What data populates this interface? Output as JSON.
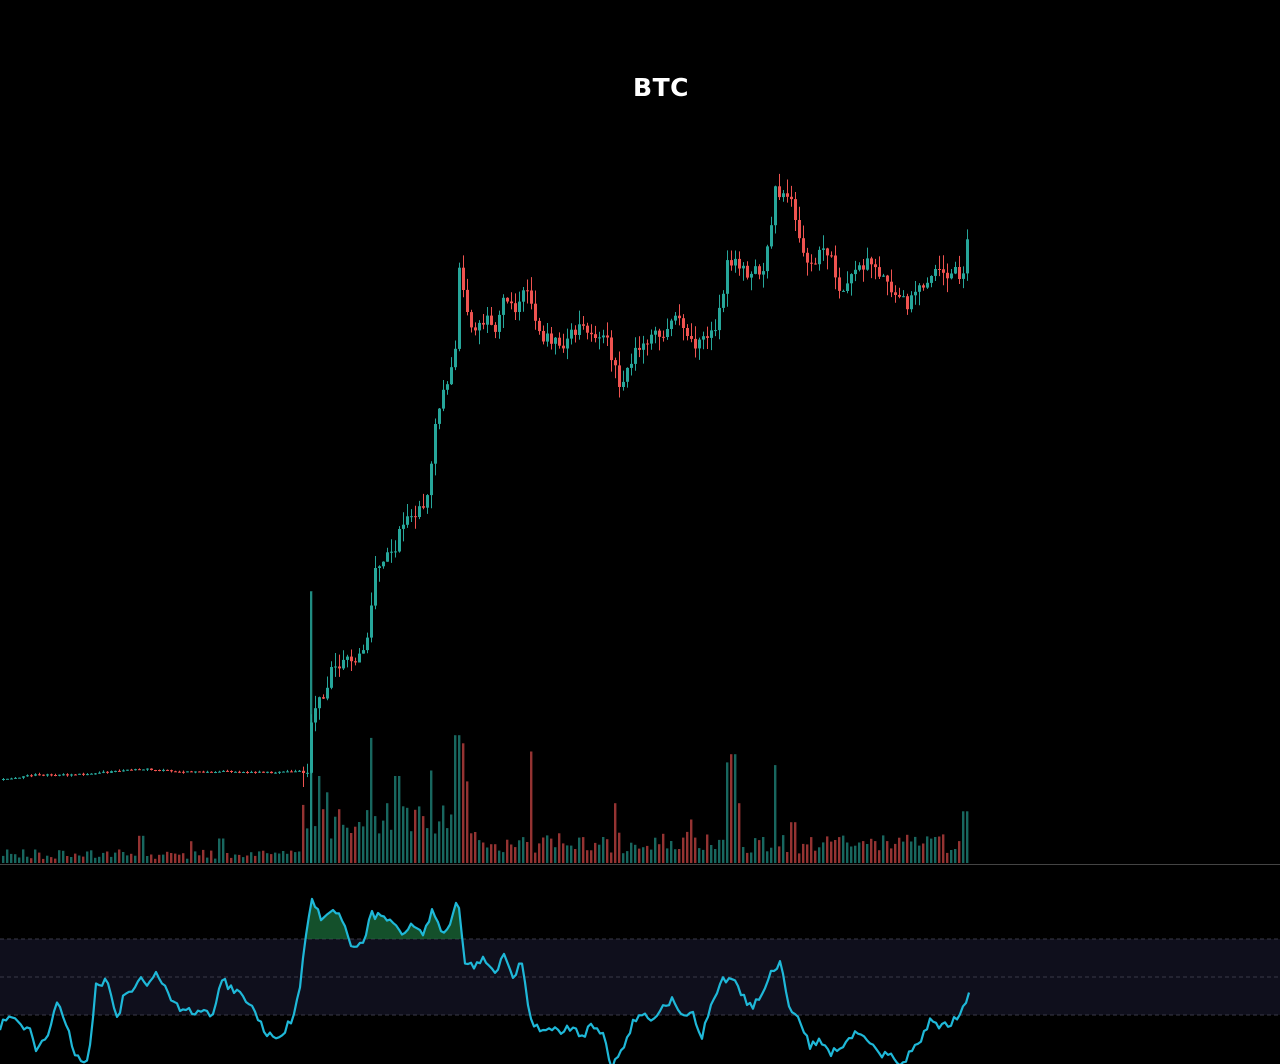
{
  "chart_data": {
    "type": "candlestick",
    "title": "BTC",
    "xlabel": "",
    "ylabel": "",
    "grid": false,
    "legend": "none",
    "price_range": [
      0,
      100
    ],
    "volume_range": [
      0,
      100
    ],
    "rsi_range": [
      0,
      100
    ],
    "rsi_bands": [
      70,
      50,
      30
    ],
    "colors": {
      "background": "#000000",
      "up": "#26a69a",
      "down": "#ef5350",
      "rsi_line": "#1fb8d8",
      "rsi_band_fill": "#0f0f1c",
      "rsi_overbought_fill": "#1b6b3a",
      "band_line": "#3a3a48",
      "separator": "#444444"
    },
    "price_path": [
      [
        0,
        0.0
      ],
      [
        32,
        0.8
      ],
      [
        60,
        0.8
      ],
      [
        90,
        1.0
      ],
      [
        140,
        1.8
      ],
      [
        180,
        1.3
      ],
      [
        220,
        1.4
      ],
      [
        270,
        1.2
      ],
      [
        300,
        1.5
      ],
      [
        306,
        1.8
      ],
      [
        312,
        12.0
      ],
      [
        318,
        12.5
      ],
      [
        325,
        13.0
      ],
      [
        330,
        17.0
      ],
      [
        340,
        19.0
      ],
      [
        350,
        19.5
      ],
      [
        360,
        20.0
      ],
      [
        366,
        22.0
      ],
      [
        372,
        32.0
      ],
      [
        382,
        35.0
      ],
      [
        392,
        36.0
      ],
      [
        398,
        40.0
      ],
      [
        405,
        42.0
      ],
      [
        412,
        41.5
      ],
      [
        420,
        43.0
      ],
      [
        428,
        47.0
      ],
      [
        432,
        55.0
      ],
      [
        440,
        60.0
      ],
      [
        448,
        63.5
      ],
      [
        455,
        68.0
      ],
      [
        458,
        80.5
      ],
      [
        462,
        77.0
      ],
      [
        466,
        75.0
      ],
      [
        470,
        71.0
      ],
      [
        478,
        71.5
      ],
      [
        486,
        73.0
      ],
      [
        494,
        71.0
      ],
      [
        502,
        77.0
      ],
      [
        512,
        76.0
      ],
      [
        516,
        74.0
      ],
      [
        522,
        78.0
      ],
      [
        528,
        77.0
      ],
      [
        532,
        73.0
      ],
      [
        542,
        70.5
      ],
      [
        552,
        70.0
      ],
      [
        562,
        69.5
      ],
      [
        572,
        71.0
      ],
      [
        580,
        72.0
      ],
      [
        588,
        70.0
      ],
      [
        596,
        71.5
      ],
      [
        604,
        70.0
      ],
      [
        612,
        67.0
      ],
      [
        618,
        62.0
      ],
      [
        626,
        64.5
      ],
      [
        634,
        68.0
      ],
      [
        644,
        70.5
      ],
      [
        652,
        70.0
      ],
      [
        660,
        71.0
      ],
      [
        670,
        72.0
      ],
      [
        676,
        73.5
      ],
      [
        684,
        71.0
      ],
      [
        690,
        70.0
      ],
      [
        698,
        69.0
      ],
      [
        706,
        70.5
      ],
      [
        712,
        71.0
      ],
      [
        720,
        76.0
      ],
      [
        726,
        82.5
      ],
      [
        734,
        83.0
      ],
      [
        740,
        81.0
      ],
      [
        746,
        80.0
      ],
      [
        754,
        81.0
      ],
      [
        762,
        81.0
      ],
      [
        768,
        86.5
      ],
      [
        774,
        94.0
      ],
      [
        780,
        92.0
      ],
      [
        786,
        93.0
      ],
      [
        790,
        92.5
      ],
      [
        796,
        88.0
      ],
      [
        800,
        84.0
      ],
      [
        806,
        82.0
      ],
      [
        812,
        81.0
      ],
      [
        818,
        84.0
      ],
      [
        824,
        84.5
      ],
      [
        830,
        83.0
      ],
      [
        836,
        79.0
      ],
      [
        842,
        78.0
      ],
      [
        850,
        80.0
      ],
      [
        858,
        81.5
      ],
      [
        866,
        82.0
      ],
      [
        872,
        81.0
      ],
      [
        880,
        80.0
      ],
      [
        886,
        78.5
      ],
      [
        892,
        77.0
      ],
      [
        900,
        76.5
      ],
      [
        906,
        75.0
      ],
      [
        912,
        77.5
      ],
      [
        920,
        78.0
      ],
      [
        928,
        79.0
      ],
      [
        936,
        80.5
      ],
      [
        944,
        80.0
      ],
      [
        952,
        80.5
      ],
      [
        958,
        80.0
      ],
      [
        962,
        81.0
      ],
      [
        966,
        85.5
      ],
      [
        970,
        86.5
      ]
    ],
    "volume_spikes": [
      [
        310,
        100
      ],
      [
        318,
        32
      ],
      [
        326,
        26
      ],
      [
        370,
        46
      ],
      [
        396,
        32
      ],
      [
        430,
        34
      ],
      [
        456,
        47
      ],
      [
        462,
        44
      ],
      [
        466,
        30
      ],
      [
        529,
        41
      ],
      [
        613,
        22
      ],
      [
        690,
        16
      ],
      [
        725,
        37
      ],
      [
        732,
        40
      ],
      [
        738,
        22
      ],
      [
        773,
        36
      ],
      [
        792,
        15
      ],
      [
        964,
        19
      ],
      [
        140,
        10
      ],
      [
        220,
        9
      ],
      [
        190,
        8
      ]
    ],
    "rsi_path": [
      [
        0,
        24
      ],
      [
        10,
        31
      ],
      [
        18,
        25
      ],
      [
        30,
        22
      ],
      [
        36,
        13
      ],
      [
        48,
        20
      ],
      [
        58,
        39
      ],
      [
        66,
        25
      ],
      [
        76,
        7
      ],
      [
        88,
        6
      ],
      [
        96,
        45
      ],
      [
        106,
        48
      ],
      [
        112,
        40
      ],
      [
        118,
        27
      ],
      [
        124,
        42
      ],
      [
        132,
        44
      ],
      [
        140,
        49
      ],
      [
        148,
        45
      ],
      [
        156,
        51
      ],
      [
        164,
        46
      ],
      [
        172,
        38
      ],
      [
        180,
        32
      ],
      [
        188,
        34
      ],
      [
        196,
        30
      ],
      [
        204,
        34
      ],
      [
        212,
        28
      ],
      [
        222,
        49
      ],
      [
        230,
        44
      ],
      [
        238,
        42
      ],
      [
        246,
        38
      ],
      [
        254,
        32
      ],
      [
        264,
        22
      ],
      [
        274,
        18
      ],
      [
        282,
        20
      ],
      [
        292,
        28
      ],
      [
        300,
        45
      ],
      [
        306,
        74
      ],
      [
        312,
        91
      ],
      [
        322,
        80
      ],
      [
        332,
        86
      ],
      [
        342,
        80
      ],
      [
        352,
        65
      ],
      [
        362,
        68
      ],
      [
        372,
        83
      ],
      [
        382,
        81
      ],
      [
        392,
        78
      ],
      [
        402,
        71
      ],
      [
        412,
        80
      ],
      [
        422,
        71
      ],
      [
        432,
        85
      ],
      [
        442,
        74
      ],
      [
        452,
        79
      ],
      [
        458,
        94
      ],
      [
        464,
        58
      ],
      [
        474,
        56
      ],
      [
        484,
        59
      ],
      [
        494,
        51
      ],
      [
        504,
        61
      ],
      [
        514,
        50
      ],
      [
        522,
        59
      ],
      [
        530,
        28
      ],
      [
        542,
        21
      ],
      [
        552,
        23
      ],
      [
        562,
        21
      ],
      [
        572,
        24
      ],
      [
        582,
        19
      ],
      [
        592,
        24
      ],
      [
        602,
        21
      ],
      [
        612,
        3
      ],
      [
        622,
        11
      ],
      [
        632,
        25
      ],
      [
        642,
        31
      ],
      [
        652,
        26
      ],
      [
        662,
        33
      ],
      [
        672,
        38
      ],
      [
        682,
        28
      ],
      [
        692,
        31
      ],
      [
        702,
        19
      ],
      [
        712,
        38
      ],
      [
        722,
        48
      ],
      [
        732,
        50
      ],
      [
        742,
        40
      ],
      [
        752,
        34
      ],
      [
        762,
        40
      ],
      [
        770,
        51
      ],
      [
        780,
        57
      ],
      [
        790,
        33
      ],
      [
        800,
        26
      ],
      [
        810,
        14
      ],
      [
        820,
        16
      ],
      [
        830,
        10
      ],
      [
        840,
        13
      ],
      [
        850,
        18
      ],
      [
        860,
        21
      ],
      [
        870,
        15
      ],
      [
        880,
        8
      ],
      [
        890,
        10
      ],
      [
        900,
        2
      ],
      [
        910,
        10
      ],
      [
        920,
        16
      ],
      [
        930,
        28
      ],
      [
        940,
        24
      ],
      [
        950,
        25
      ],
      [
        960,
        31
      ],
      [
        970,
        43
      ]
    ]
  }
}
